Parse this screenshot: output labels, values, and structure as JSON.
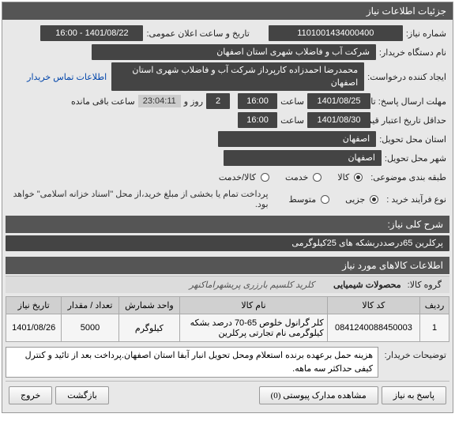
{
  "panel": {
    "title": "جزئیات اطلاعات نیاز"
  },
  "fields": {
    "reqno_label": "شماره نیاز:",
    "reqno_value": "1101001434000400",
    "announce_label": "تاریخ و ساعت اعلان عمومی:",
    "announce_value": "1401/08/22 - 16:00",
    "buyer_label": "نام دستگاه خریدار:",
    "buyer_value": "شرکت آب و فاضلاب شهری استان اصفهان",
    "creator_label": "ایجاد کننده درخواست:",
    "creator_value": "محمدرضا احمدزاده کارپرداز شرکت آب و فاضلاب شهری استان اصفهان",
    "contact_link": "اطلاعات تماس خریدار",
    "deadline_label": "مهلت ارسال پاسخ: تا تاریخ:",
    "deadline_date": "1401/08/25",
    "hour_label": "ساعت",
    "deadline_hour": "16:00",
    "dayhour_label": "روز و",
    "remaining_days": "2",
    "remaining_time": "23:04:11",
    "remaining_suffix": "ساعت باقی مانده",
    "validity_label": "حداقل تاریخ اعتبار قیمت: تا تاریخ:",
    "validity_date": "1401/08/30",
    "validity_hour": "16:00",
    "delivery_city_label": "استان محل تحویل:",
    "delivery_city": "اصفهان",
    "delivery_town_label": "شهر محل تحویل:",
    "delivery_town": "اصفهان",
    "category_label": "طبقه بندی موضوعی:",
    "cat_goods": "کالا",
    "cat_service": "خدمت",
    "cat_both": "کالا/خدمت",
    "process_label": "نوع فرآیند خرید :",
    "proc_low": "جزیی",
    "proc_mid": "متوسط",
    "pay_notice": "پرداخت تمام یا بخشی از مبلغ خرید،از محل \"اسناد خزانه اسلامی\" خواهد بود."
  },
  "desc": {
    "title": "شرح کلی نیاز:",
    "value": "پرکلرین 65درصددربشکه های 25کیلوگرمی"
  },
  "items": {
    "section": "اطلاعات کالاهای مورد نیاز",
    "group_label": "گروه کالا:",
    "group_value": "محصولات شیمیایی",
    "group_note": "کلرید کلسیم بارزری پریشهراماکنهر",
    "headers": {
      "row": "ردیف",
      "code": "کد کالا",
      "name": "نام کالا",
      "unit": "واحد شمارش",
      "qty": "تعداد / مقدار",
      "date": "تاریخ نیاز"
    },
    "rows": [
      {
        "row": "1",
        "code": "0841240088450003",
        "name": "کلر گرانول خلوص 65-70 درصد بشکه کیلوگرمی نام تجارتی پرکلرین",
        "unit": "کیلوگرم",
        "qty": "5000",
        "date": "1401/08/26"
      }
    ]
  },
  "buyer_note": {
    "label": "توضیحات خریدار:",
    "value": "هزینه حمل برعهده برنده استعلام ومحل تحویل انبار آبفا استان اصفهان.پرداخت بعد از تائید و کنترل کیفی حداکثر سه ماهه."
  },
  "footer": {
    "reply": "پاسخ به نیاز",
    "attach": "مشاهده مدارک پیوستی (0)",
    "back": "بازگشت",
    "exit": "خروج"
  }
}
